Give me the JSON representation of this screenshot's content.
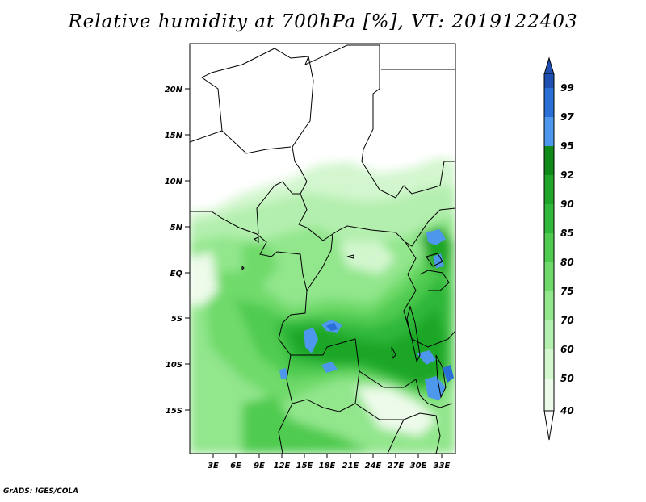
{
  "title": "Relative humidity at 700hPa [%], VT: 2019122403",
  "credit": "GrADS: IGES/COLA",
  "map": {
    "lat_labels": [
      "20N",
      "15N",
      "10N",
      "5N",
      "EQ",
      "5S",
      "10S",
      "15S"
    ],
    "lon_labels": [
      "3E",
      "6E",
      "9E",
      "12E",
      "15E",
      "18E",
      "21E",
      "24E",
      "27E",
      "30E",
      "33E"
    ]
  },
  "colorbar": {
    "labels": [
      "99",
      "97",
      "95",
      "92",
      "90",
      "85",
      "80",
      "75",
      "70",
      "60",
      "50",
      "40"
    ],
    "colors": [
      "#1f4fb0",
      "#2a6fd6",
      "#4d98ec",
      "#0f8a19",
      "#1fa628",
      "#2fb83a",
      "#4fcb4f",
      "#6fda6b",
      "#92e68c",
      "#b3efae",
      "#d3f6cf",
      "#edfbea"
    ]
  }
}
